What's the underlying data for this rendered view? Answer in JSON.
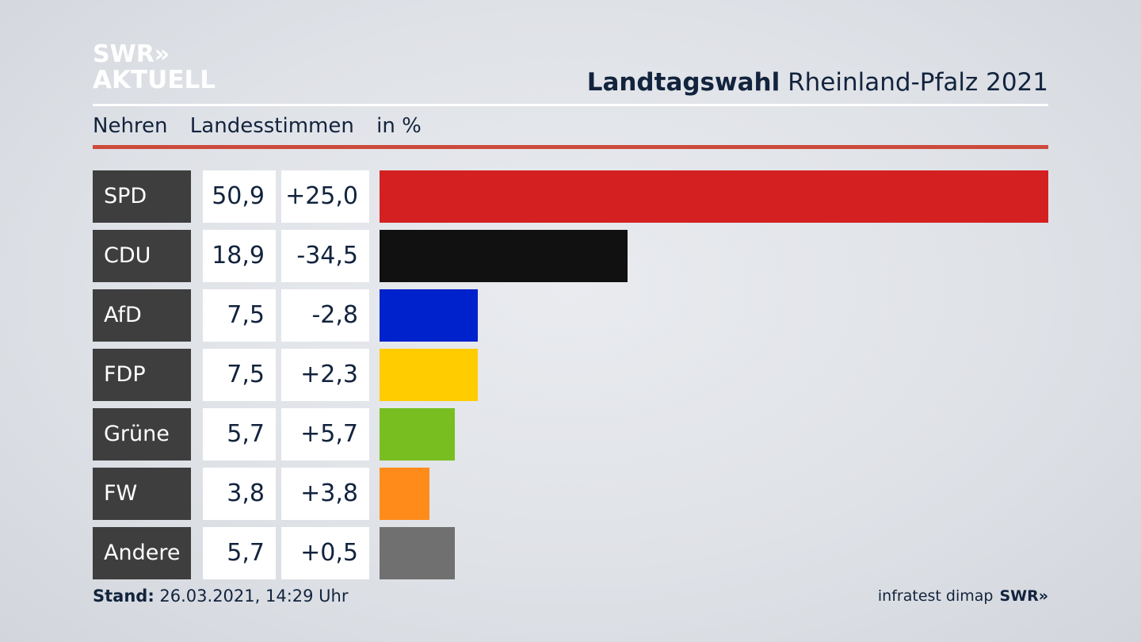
{
  "logo": {
    "line1": "SWR»",
    "line2": "AKTUELL"
  },
  "header": {
    "title_bold": "Landtagswahl",
    "title_rest": " Rheinland-Pfalz 2021"
  },
  "subheader": {
    "place": "Nehren",
    "metric": "Landesstimmen",
    "unit": "in %"
  },
  "footer": {
    "stand_label": "Stand:",
    "stand_value": " 26.03.2021, 14:29 Uhr",
    "source": "infratest dimap",
    "brand": "SWR»"
  },
  "colors": {
    "accent_line": "#cd4a3c",
    "text": "#12233d",
    "label_bg": "#3e3e3e"
  },
  "chart_data": {
    "type": "bar",
    "orientation": "horizontal",
    "categories": [
      "SPD",
      "CDU",
      "AfD",
      "FDP",
      "Grüne",
      "FW",
      "Andere"
    ],
    "values": [
      50.9,
      18.9,
      7.5,
      7.5,
      5.7,
      3.8,
      5.7
    ],
    "value_labels": [
      "50,9",
      "18,9",
      "7,5",
      "7,5",
      "5,7",
      "3,8",
      "5,7"
    ],
    "changes": [
      "+25,0",
      "-34,5",
      "-2,8",
      "+2,3",
      "+5,7",
      "+3,8",
      "+0,5"
    ],
    "colors": [
      "#d42020",
      "#111111",
      "#0022cc",
      "#ffcc00",
      "#78be20",
      "#ff8c1a",
      "#707070"
    ],
    "xlim": [
      0,
      50.9
    ]
  }
}
